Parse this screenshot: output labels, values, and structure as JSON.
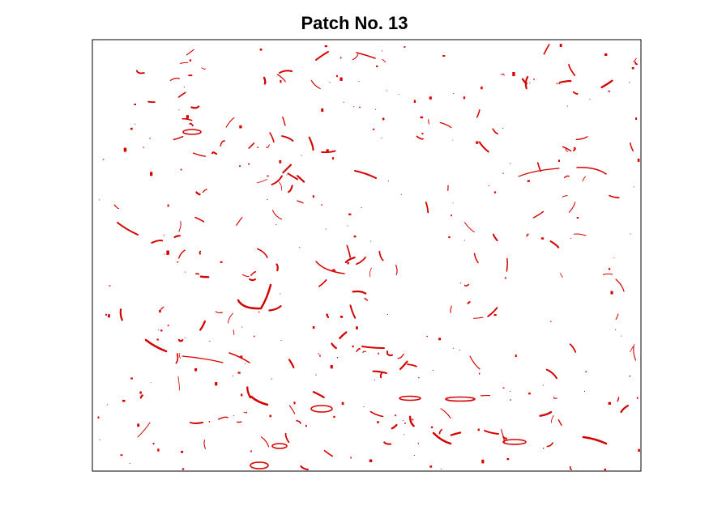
{
  "figure": {
    "title": "Patch No. 13"
  },
  "colors": {
    "mark": "#d40000",
    "frame": "#000000",
    "background": "#ffffff"
  }
}
